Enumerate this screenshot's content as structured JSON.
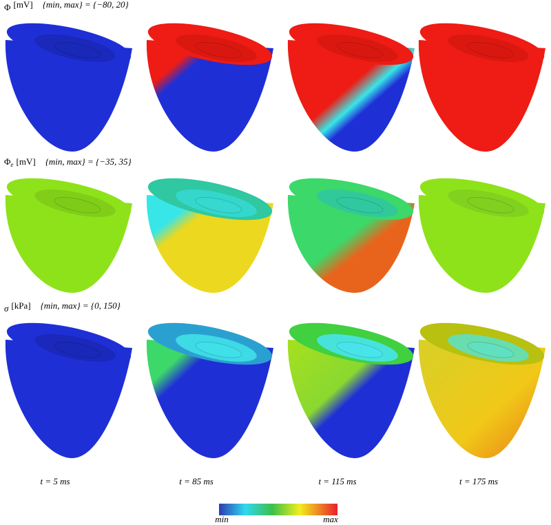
{
  "rows": [
    {
      "quantity": "Φ",
      "subscript": "",
      "unit": "[mV]",
      "range_label": "{min, max} = {−80, 20}"
    },
    {
      "quantity": "Φ",
      "subscript": "e",
      "unit": "[mV]",
      "range_label": "{min, max} = {−35, 35}"
    },
    {
      "quantity": "σ",
      "subscript": "",
      "unit": "[kPa]",
      "range_label": "{min, max} = {0, 150}"
    }
  ],
  "times": [
    "t = 5 ms",
    "t = 85 ms",
    "t = 115 ms",
    "t = 175 ms"
  ],
  "colorbar": {
    "min": "min",
    "max": "max"
  }
}
